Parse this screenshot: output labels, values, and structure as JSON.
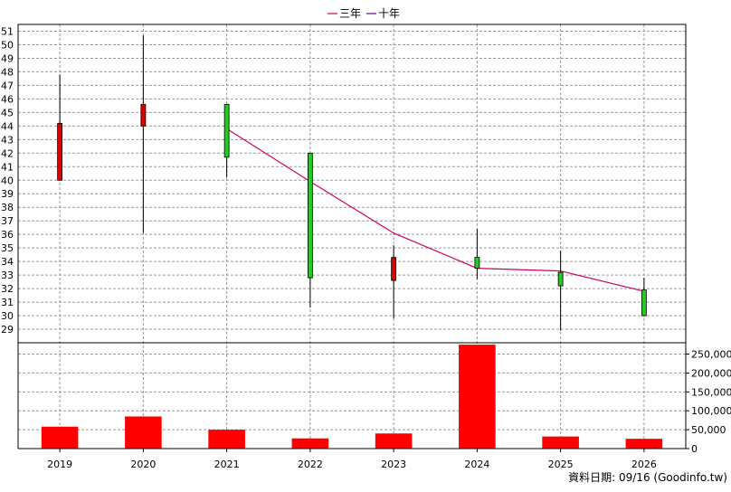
{
  "legend": {
    "items": [
      {
        "label": "三年",
        "color": "#cc0066"
      },
      {
        "label": "十年",
        "color": "#660099"
      }
    ]
  },
  "footer": {
    "text": "資料日期: 09/16 (Goodinfo.tw)"
  },
  "chart_data": {
    "type": "candlestick",
    "categories": [
      "2019",
      "2020",
      "2021",
      "2022",
      "2023",
      "2024",
      "2025",
      "2026"
    ],
    "price_axis": {
      "ylim": [
        28,
        51.5
      ],
      "ticks": [
        29,
        30,
        31,
        32,
        33,
        34,
        35,
        36,
        37,
        38,
        39,
        40,
        41,
        42,
        43,
        44,
        45,
        46,
        47,
        48,
        49,
        50,
        51
      ],
      "side": "left"
    },
    "candles": [
      {
        "open": 40.0,
        "close": 44.2,
        "low": 40.0,
        "high": 47.8,
        "color": "#dd0000"
      },
      {
        "open": 44.0,
        "close": 45.6,
        "low": 36.1,
        "high": 50.7,
        "color": "#dd0000"
      },
      {
        "open": 45.6,
        "close": 41.7,
        "low": 40.2,
        "high": 45.6,
        "color": "#22cc22"
      },
      {
        "open": 42.0,
        "close": 32.8,
        "low": 30.6,
        "high": 42.0,
        "color": "#22cc22"
      },
      {
        "open": 32.6,
        "close": 34.3,
        "low": 29.8,
        "high": 35.2,
        "color": "#dd0000"
      },
      {
        "open": 34.3,
        "close": 33.5,
        "low": 32.7,
        "high": 36.4,
        "color": "#22cc22"
      },
      {
        "open": 33.2,
        "close": 32.2,
        "low": 28.9,
        "high": 34.8,
        "color": "#22cc22"
      },
      {
        "open": 31.9,
        "close": 30.0,
        "low": 30.0,
        "high": 32.8,
        "color": "#22cc22"
      }
    ],
    "series": [
      {
        "name": "三年",
        "color": "#cc0066",
        "x": [
          "2021",
          "2022",
          "2023",
          "2024",
          "2025",
          "2026"
        ],
        "values": [
          43.8,
          39.9,
          36.1,
          33.5,
          33.3,
          31.8
        ]
      }
    ],
    "volume_axis": {
      "ylim": [
        0,
        280000
      ],
      "ticks": [
        0,
        50000,
        100000,
        150000,
        200000,
        250000
      ],
      "tick_labels": [
        "0",
        "50,000",
        "100,000",
        "150,000",
        "200,000",
        "250,000"
      ],
      "side": "right"
    },
    "volume": {
      "values": [
        58000,
        85000,
        50000,
        27000,
        40000,
        275000,
        32000,
        26000
      ],
      "color": "#ff0000"
    },
    "grid": true,
    "gridline_style": "dashed"
  }
}
